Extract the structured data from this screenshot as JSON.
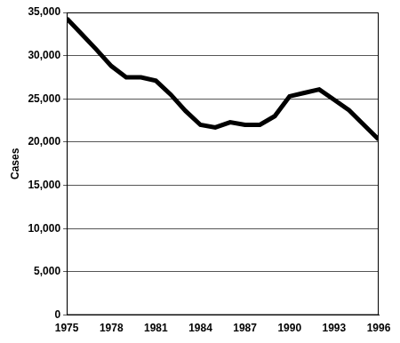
{
  "chart_data": {
    "type": "line",
    "y_label": "Cases",
    "x": [
      1975,
      1976,
      1977,
      1978,
      1979,
      1980,
      1981,
      1982,
      1983,
      1984,
      1985,
      1986,
      1987,
      1988,
      1989,
      1990,
      1991,
      1992,
      1993,
      1994,
      1995,
      1996
    ],
    "values": [
      34300,
      32500,
      30700,
      28800,
      27500,
      27500,
      27100,
      25500,
      23600,
      22000,
      21700,
      22300,
      22000,
      22000,
      23000,
      25300,
      25700,
      26100,
      24900,
      23700,
      22000,
      20300
    ],
    "color": "#000000",
    "xlim": [
      1975,
      1996
    ],
    "xticks": [
      1975,
      1978,
      1981,
      1984,
      1987,
      1990,
      1993,
      1996
    ],
    "ylim": [
      0,
      35000
    ],
    "yticks": [
      0,
      {
        "value": 5000,
        "label": "5,000"
      },
      {
        "value": 10000,
        "label": "10,000"
      },
      {
        "value": 15000,
        "label": "15,000"
      },
      {
        "value": 20000,
        "label": "20,000"
      },
      {
        "value": 25000,
        "label": "25,000"
      },
      {
        "value": 30000,
        "label": "30,000"
      },
      {
        "value": 35000,
        "label": "35,000"
      }
    ],
    "grid": true
  }
}
